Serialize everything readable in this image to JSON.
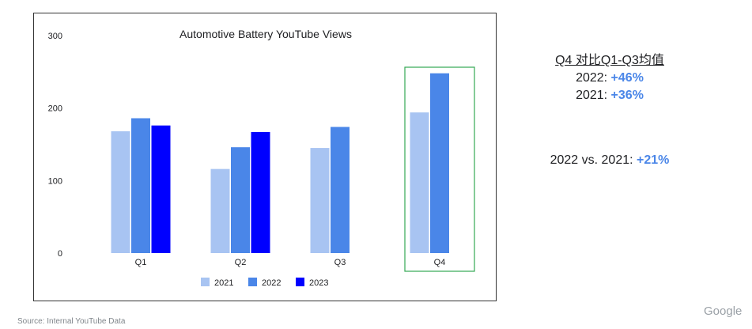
{
  "chart_data": {
    "type": "bar",
    "title": "Automotive Battery YouTube Views",
    "categories": [
      "Q1",
      "Q2",
      "Q3",
      "Q4"
    ],
    "series": [
      {
        "name": "2021",
        "values": [
          168,
          116,
          145,
          194
        ],
        "color": "#a8c4f2"
      },
      {
        "name": "2022",
        "values": [
          186,
          146,
          174,
          248
        ],
        "color": "#4a86e8"
      },
      {
        "name": "2023",
        "values": [
          176,
          167,
          null,
          null
        ],
        "color": "#0000ff"
      }
    ],
    "yticks": [
      0,
      100,
      200,
      300
    ],
    "ylim": [
      0,
      300
    ],
    "legend_position": "bottom",
    "highlight_category": "Q4",
    "highlight_color": "#34a853",
    "grid": false
  },
  "side_panel": {
    "heading": "Q4 对比Q1-Q3均值",
    "rows": [
      {
        "label": "2022: ",
        "value": "+46%"
      },
      {
        "label": "2021: ",
        "value": "+36%"
      }
    ],
    "comparison": {
      "label": "2022 vs. 2021: ",
      "value": "+21%"
    }
  },
  "footer": {
    "source": "Source: Internal YouTube Data",
    "brand": "Google"
  }
}
